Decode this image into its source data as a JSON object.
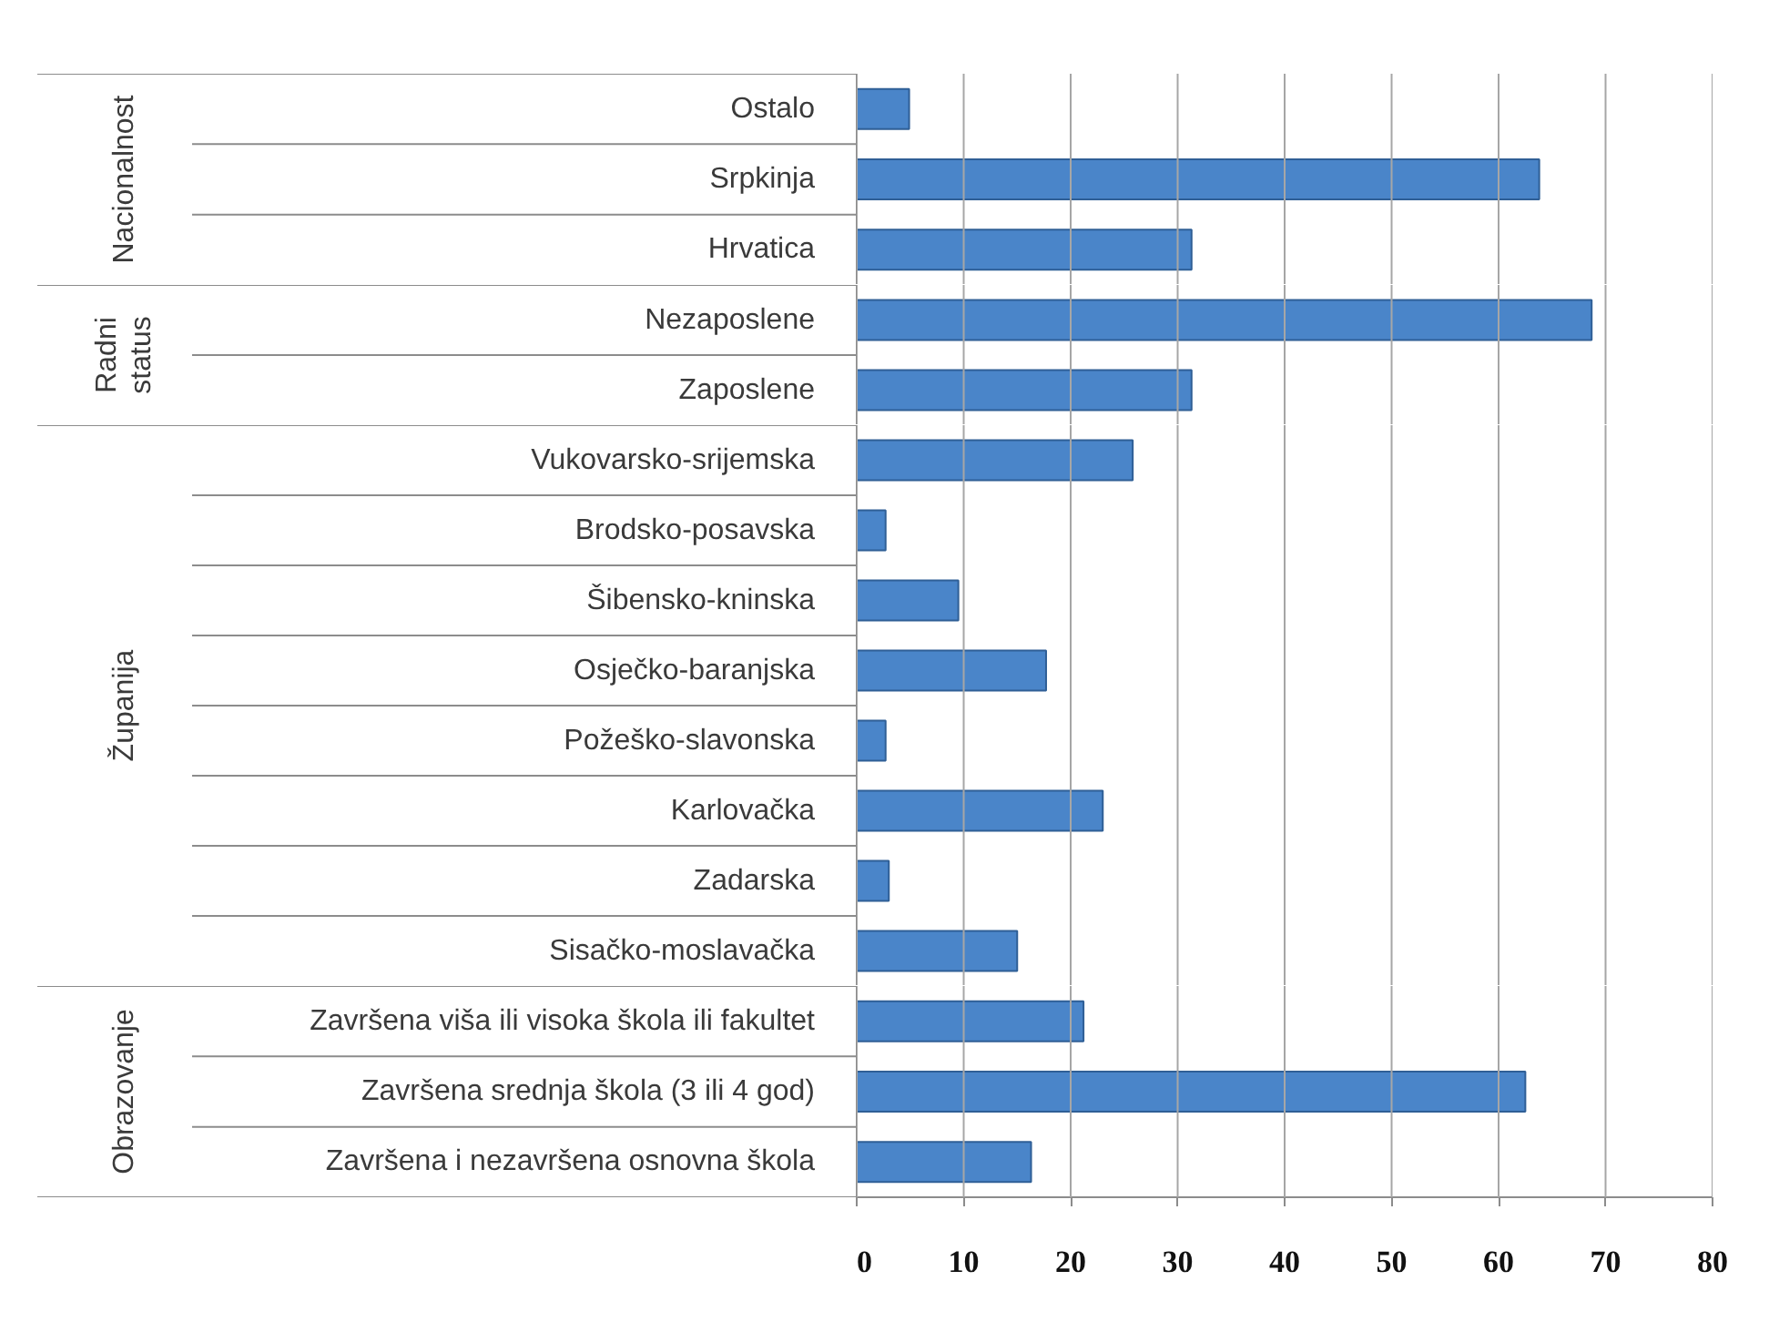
{
  "chart_data": [
    {
      "type": "bar",
      "orientation": "horizontal",
      "ylabel": "Nacionalnost",
      "categories": [
        "Ostalo",
        "Srpkinja",
        "Hrvatica"
      ],
      "values": [
        4.9,
        63.8,
        31.3
      ],
      "color": "#4a85c9",
      "xlim": [
        0,
        80
      ],
      "xticks": [
        0,
        10,
        20,
        30,
        40,
        50,
        60,
        70,
        80
      ],
      "grid": "x",
      "tick_labels": "y"
    },
    {
      "type": "bar",
      "orientation": "horizontal",
      "ylabel": "Radni status",
      "categories": [
        "Nezaposlene",
        "Zaposlene"
      ],
      "values": [
        68.7,
        31.3
      ],
      "color": "#4a85c9",
      "xlim": [
        0,
        80
      ],
      "xticks": [
        0,
        10,
        20,
        30,
        40,
        50,
        60,
        70,
        80
      ],
      "grid": "x",
      "tick_labels": "y"
    },
    {
      "type": "bar",
      "orientation": "horizontal",
      "ylabel": "Županija",
      "categories": [
        "Vukovarsko-srijemska",
        "Brodsko-posavska",
        "Šibensko-kninska",
        "Osječko-baranjska",
        "Požeško-slavonska",
        "Karlovačka",
        "Zadarska",
        "Sisačko-moslavačka"
      ],
      "values": [
        25.8,
        2.7,
        9.5,
        17.7,
        2.7,
        23.0,
        3.0,
        15.0
      ],
      "color": "#4a85c9",
      "xlim": [
        0,
        80
      ],
      "xticks": [
        0,
        10,
        20,
        30,
        40,
        50,
        60,
        70,
        80
      ],
      "grid": "x",
      "tick_labels": "y"
    },
    {
      "type": "bar",
      "orientation": "horizontal",
      "ylabel": "Obrazovanje",
      "categories": [
        "Završena viša ili visoka škola ili fakultet",
        "Završena srednja škola (3 ili 4 god)",
        "Završena i nezavršena osnovna škola"
      ],
      "values": [
        21.2,
        62.5,
        16.3
      ],
      "color": "#4a85c9",
      "xlim": [
        0,
        80
      ],
      "xticks": [
        0,
        10,
        20,
        30,
        40,
        50,
        60,
        70,
        80
      ],
      "grid": "x"
    }
  ]
}
